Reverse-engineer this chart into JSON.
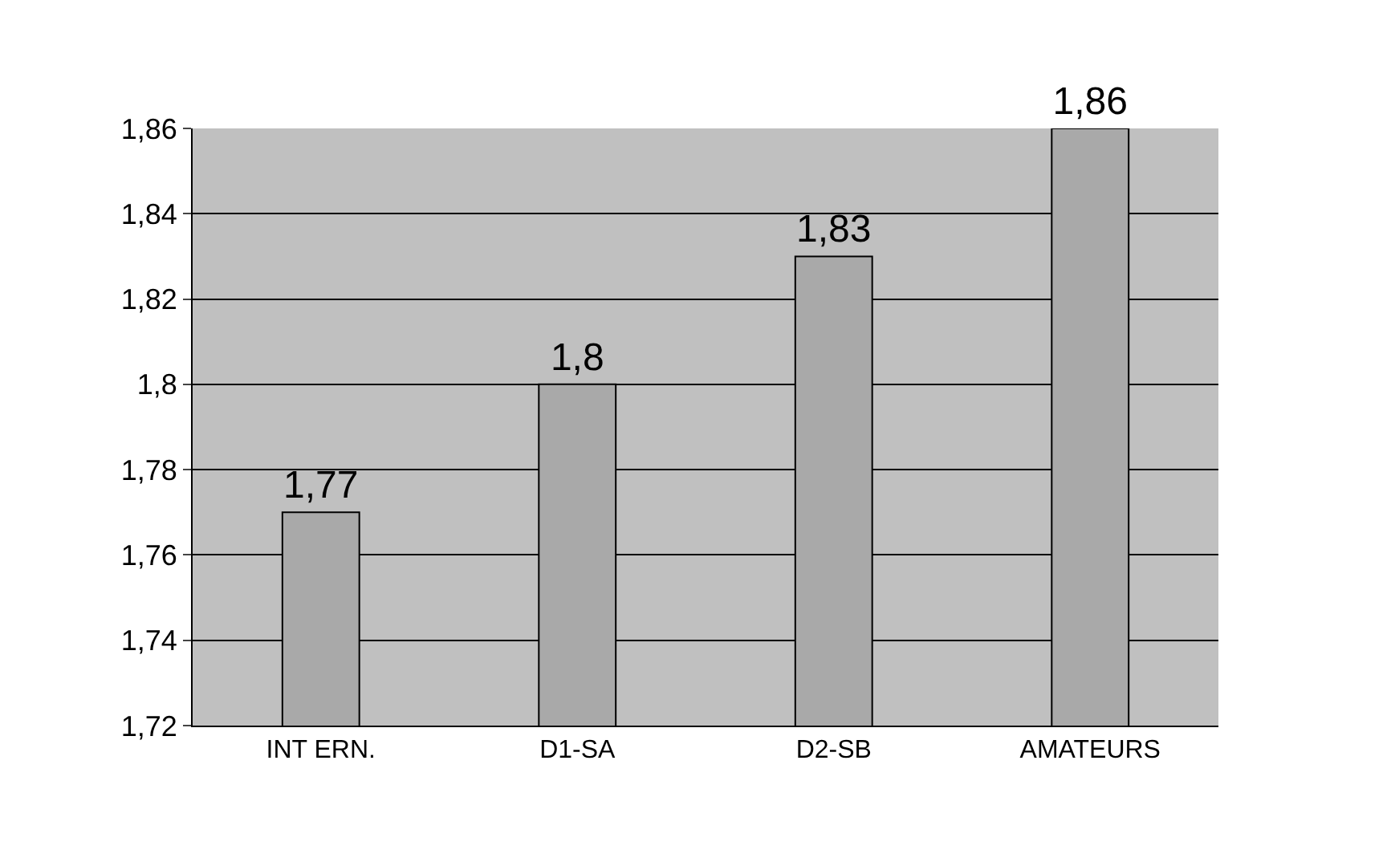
{
  "chart_data": {
    "type": "bar",
    "categories": [
      "INT ERN.",
      "D1-SA",
      "D2-SB",
      "AMATEURS"
    ],
    "values": [
      1.77,
      1.8,
      1.83,
      1.86
    ],
    "value_labels": [
      "1,77",
      "1,8",
      "1,83",
      "1,86"
    ],
    "color": "#a9a9a9",
    "ylim": [
      1.72,
      1.86
    ],
    "yticks": [
      {
        "value": 1.72,
        "label": "1,72"
      },
      {
        "value": 1.74,
        "label": "1,74"
      },
      {
        "value": 1.76,
        "label": "1,76"
      },
      {
        "value": 1.78,
        "label": "1,78"
      },
      {
        "value": 1.8,
        "label": "1,8"
      },
      {
        "value": 1.82,
        "label": "1,82"
      },
      {
        "value": 1.84,
        "label": "1,84"
      },
      {
        "value": 1.86,
        "label": "1,86"
      }
    ],
    "grid": "y"
  }
}
